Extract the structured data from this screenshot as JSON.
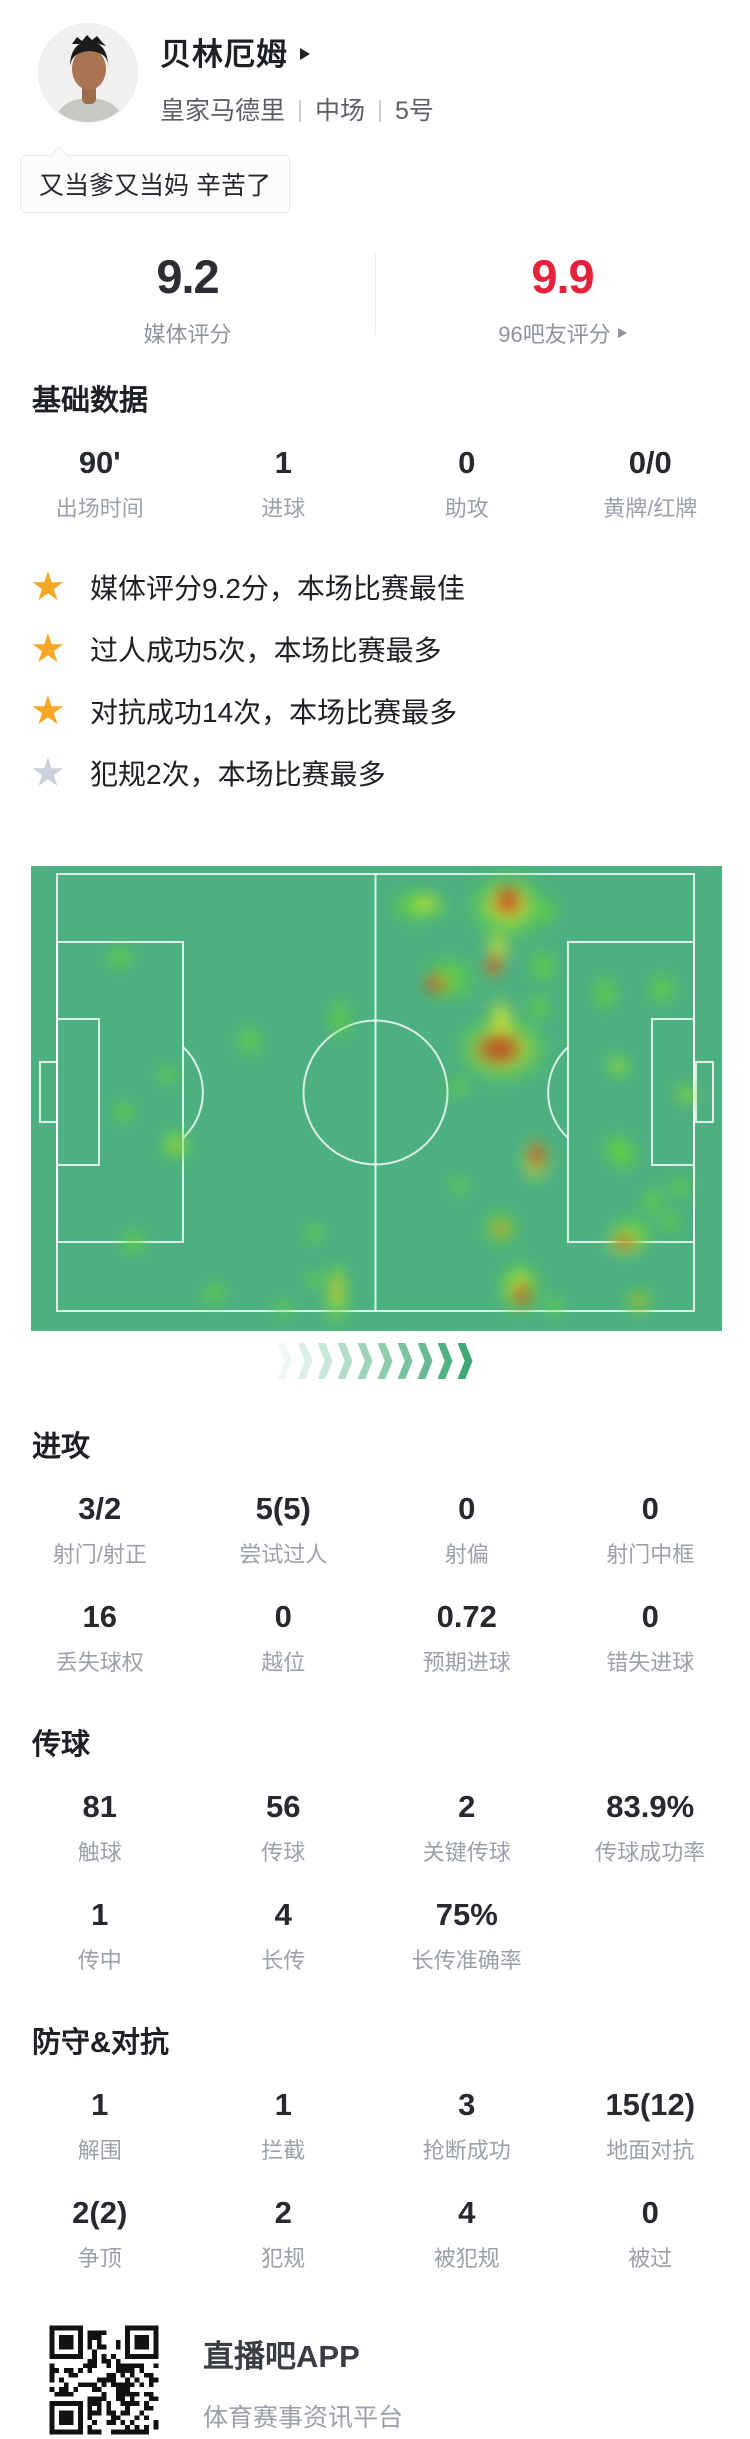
{
  "colors": {
    "accent_red": "#e6213c",
    "star_gold": "#f6a723",
    "star_gray": "#cbd2dc",
    "pitch_green": "#4db080",
    "chevron_green": "#3ea873"
  },
  "header": {
    "player_name": "贝林厄姆",
    "team": "皇家马德里",
    "position": "中场",
    "shirt_number": "5号",
    "tag_bubble": "又当爹又当妈 辛苦了"
  },
  "ratings": {
    "media": {
      "value": "9.2",
      "label": "媒体评分"
    },
    "fans": {
      "value": "9.9",
      "label": "96吧友评分"
    }
  },
  "highlights": [
    {
      "star": "gold",
      "text": "媒体评分9.2分，本场比赛最佳"
    },
    {
      "star": "gold",
      "text": "过人成功5次，本场比赛最多"
    },
    {
      "star": "gold",
      "text": "对抗成功14次，本场比赛最多"
    },
    {
      "star": "gray",
      "text": "犯规2次，本场比赛最多"
    }
  ],
  "sections": {
    "basic": {
      "title": "基础数据",
      "rows": [
        [
          {
            "v": "90'",
            "l": "出场时间"
          },
          {
            "v": "1",
            "l": "进球"
          },
          {
            "v": "0",
            "l": "助攻"
          },
          {
            "v": "0/0",
            "l": "黄牌/红牌"
          }
        ]
      ]
    },
    "attack": {
      "title": "进攻",
      "rows": [
        [
          {
            "v": "3/2",
            "l": "射门/射正"
          },
          {
            "v": "5(5)",
            "l": "尝试过人"
          },
          {
            "v": "0",
            "l": "射偏"
          },
          {
            "v": "0",
            "l": "射门中框"
          }
        ],
        [
          {
            "v": "16",
            "l": "丢失球权"
          },
          {
            "v": "0",
            "l": "越位"
          },
          {
            "v": "0.72",
            "l": "预期进球"
          },
          {
            "v": "0",
            "l": "错失进球"
          }
        ]
      ]
    },
    "passing": {
      "title": "传球",
      "rows": [
        [
          {
            "v": "81",
            "l": "触球"
          },
          {
            "v": "56",
            "l": "传球"
          },
          {
            "v": "2",
            "l": "关键传球"
          },
          {
            "v": "83.9%",
            "l": "传球成功率"
          }
        ],
        [
          {
            "v": "1",
            "l": "传中"
          },
          {
            "v": "4",
            "l": "长传"
          },
          {
            "v": "75%",
            "l": "长传准确率"
          }
        ]
      ]
    },
    "defense": {
      "title": "防守&对抗",
      "rows": [
        [
          {
            "v": "1",
            "l": "解围"
          },
          {
            "v": "1",
            "l": "拦截"
          },
          {
            "v": "3",
            "l": "抢断成功"
          },
          {
            "v": "15(12)",
            "l": "地面对抗"
          }
        ],
        [
          {
            "v": "2(2)",
            "l": "争顶"
          },
          {
            "v": "2",
            "l": "犯规"
          },
          {
            "v": "4",
            "l": "被犯规"
          },
          {
            "v": "0",
            "l": "被过"
          }
        ]
      ]
    }
  },
  "heatmap": {
    "chevron_count": 10,
    "blobs": [
      [
        89,
        92,
        15,
        15,
        "g"
      ],
      [
        218,
        175,
        15,
        18,
        "g"
      ],
      [
        309,
        153,
        13,
        24,
        "g"
      ],
      [
        136,
        209,
        12,
        12,
        "g"
      ],
      [
        93,
        246,
        13,
        13,
        "g"
      ],
      [
        145,
        279,
        18,
        18,
        "g"
      ],
      [
        145,
        279,
        9,
        9,
        "y"
      ],
      [
        103,
        376,
        15,
        15,
        "g"
      ],
      [
        184,
        428,
        14,
        14,
        "g"
      ],
      [
        283,
        367,
        12,
        12,
        "g"
      ],
      [
        283,
        414,
        11,
        11,
        "g"
      ],
      [
        252,
        442,
        11,
        11,
        "g"
      ],
      [
        306,
        428,
        15,
        38,
        "g"
      ],
      [
        306,
        426,
        8,
        26,
        "y"
      ],
      [
        306,
        424,
        4,
        14,
        "o"
      ],
      [
        387,
        40,
        34,
        20,
        "g"
      ],
      [
        394,
        38,
        18,
        10,
        "y"
      ],
      [
        477,
        42,
        46,
        40,
        "g"
      ],
      [
        477,
        39,
        30,
        26,
        "y"
      ],
      [
        477,
        36,
        20,
        18,
        "o"
      ],
      [
        477,
        34,
        12,
        16,
        "r"
      ],
      [
        516,
        46,
        14,
        14,
        "g"
      ],
      [
        467,
        82,
        12,
        20,
        "y"
      ],
      [
        419,
        113,
        30,
        26,
        "g"
      ],
      [
        407,
        117,
        15,
        12,
        "o"
      ],
      [
        402,
        119,
        9,
        8,
        "r"
      ],
      [
        463,
        100,
        11,
        14,
        "o"
      ],
      [
        463,
        99,
        7,
        10,
        "r"
      ],
      [
        512,
        100,
        16,
        20,
        "g"
      ],
      [
        508,
        141,
        14,
        16,
        "g"
      ],
      [
        470,
        155,
        14,
        28,
        "y"
      ],
      [
        472,
        183,
        52,
        40,
        "g"
      ],
      [
        470,
        183,
        38,
        28,
        "y"
      ],
      [
        468,
        183,
        26,
        18,
        "r"
      ],
      [
        427,
        221,
        12,
        12,
        "g"
      ],
      [
        574,
        127,
        15,
        21,
        "g"
      ],
      [
        631,
        123,
        17,
        19,
        "g"
      ],
      [
        587,
        200,
        15,
        15,
        "g"
      ],
      [
        587,
        200,
        7,
        7,
        "y"
      ],
      [
        654,
        228,
        13,
        13,
        "g"
      ],
      [
        657,
        230,
        7,
        7,
        "y"
      ],
      [
        592,
        290,
        18,
        18,
        "g"
      ],
      [
        587,
        281,
        16,
        16,
        "g"
      ],
      [
        428,
        320,
        12,
        12,
        "g"
      ],
      [
        505,
        294,
        16,
        24,
        "y"
      ],
      [
        506,
        289,
        9,
        16,
        "r"
      ],
      [
        470,
        362,
        22,
        22,
        "g"
      ],
      [
        470,
        363,
        11,
        11,
        "o"
      ],
      [
        489,
        421,
        26,
        32,
        "g"
      ],
      [
        489,
        423,
        16,
        22,
        "y"
      ],
      [
        491,
        429,
        9,
        14,
        "r"
      ],
      [
        523,
        440,
        12,
        12,
        "g"
      ],
      [
        601,
        368,
        26,
        22,
        "g"
      ],
      [
        594,
        376,
        20,
        16,
        "y"
      ],
      [
        594,
        376,
        10,
        8,
        "r"
      ],
      [
        622,
        335,
        15,
        15,
        "g"
      ],
      [
        649,
        321,
        13,
        13,
        "g"
      ],
      [
        639,
        356,
        13,
        13,
        "g"
      ],
      [
        608,
        435,
        17,
        17,
        "g"
      ],
      [
        608,
        435,
        8,
        8,
        "o"
      ]
    ]
  },
  "footer": {
    "app_name": "直播吧APP",
    "subtitle": "体育赛事资讯平台"
  }
}
